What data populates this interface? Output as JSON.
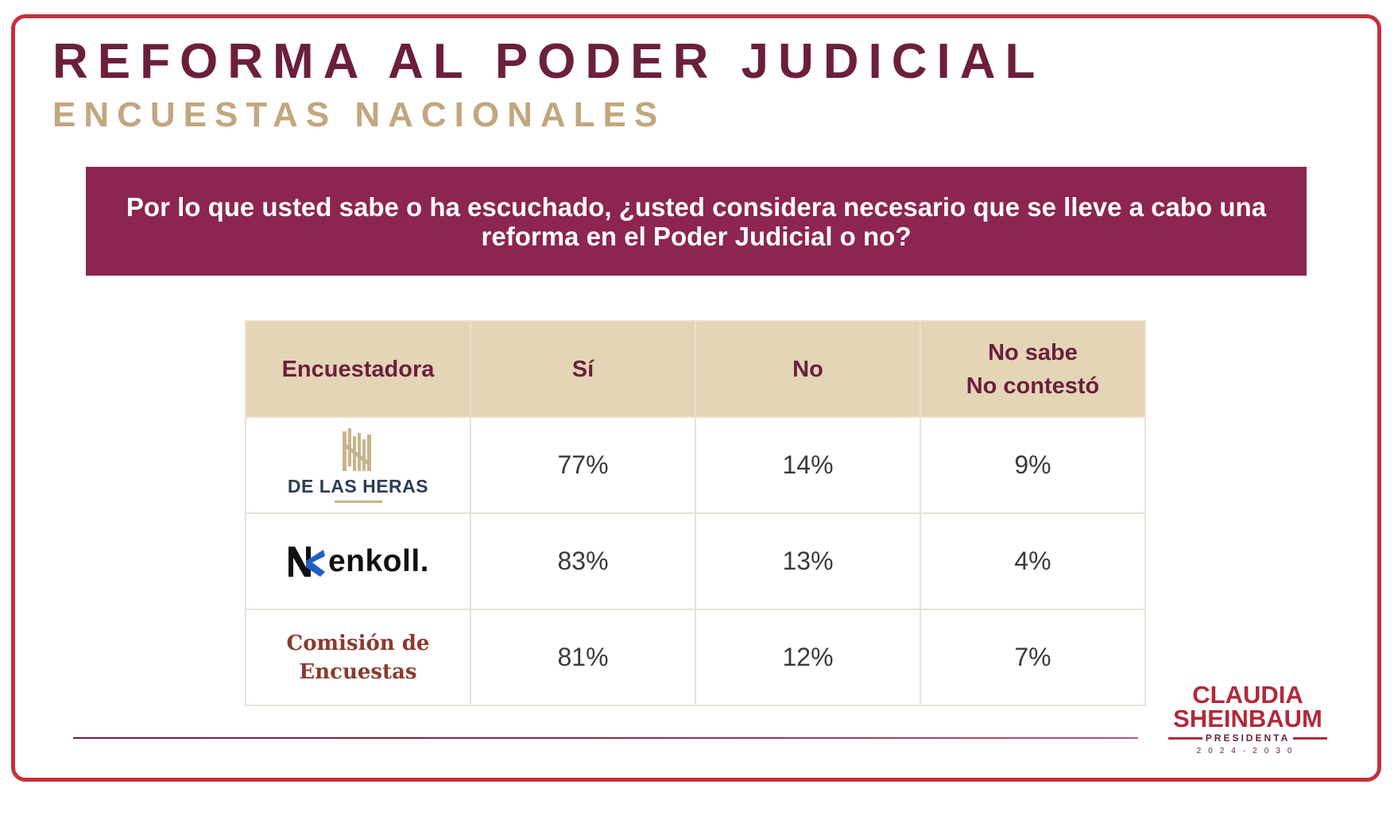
{
  "header": {
    "title": "REFORMA AL PODER JUDICIAL",
    "subtitle": "ENCUESTAS NACIONALES"
  },
  "question": "Por lo que usted sabe o ha escuchado, ¿usted considera necesario que se lleve a cabo una reforma en el Poder Judicial o no?",
  "table": {
    "headers": {
      "pollster": "Encuestadora",
      "yes": "Sí",
      "no": "No",
      "dk_line1": "No sabe",
      "dk_line2": "No contestó"
    },
    "rows": [
      {
        "pollster": "DE LAS HERAS",
        "yes": "77%",
        "no": "14%",
        "dk": "9%"
      },
      {
        "pollster": "enkoll.",
        "yes": "83%",
        "no": "13%",
        "dk": "4%"
      },
      {
        "pollster_line1": "Comisión de",
        "pollster_line2": "Encuestas",
        "yes": "81%",
        "no": "12%",
        "dk": "7%"
      }
    ]
  },
  "chart_data": {
    "type": "table",
    "columns": [
      "Encuestadora",
      "Sí",
      "No",
      "No sabe No contestó"
    ],
    "rows": [
      [
        "DE LAS HERAS",
        "77%",
        "14%",
        "9%"
      ],
      [
        "enkoll.",
        "83%",
        "13%",
        "4%"
      ],
      [
        "Comisión de Encuestas",
        "81%",
        "12%",
        "7%"
      ]
    ]
  },
  "brand": {
    "line1": "CLAUDIA",
    "line2": "SHEINBAUM",
    "role": "PRESIDENTA",
    "years": "2024-2030"
  },
  "colors": {
    "primary": "#6b1f3d",
    "question_bg": "#8c2552",
    "gold": "#c1a77e",
    "header_bg": "#e3d5b6",
    "frame": "#c4313a"
  }
}
